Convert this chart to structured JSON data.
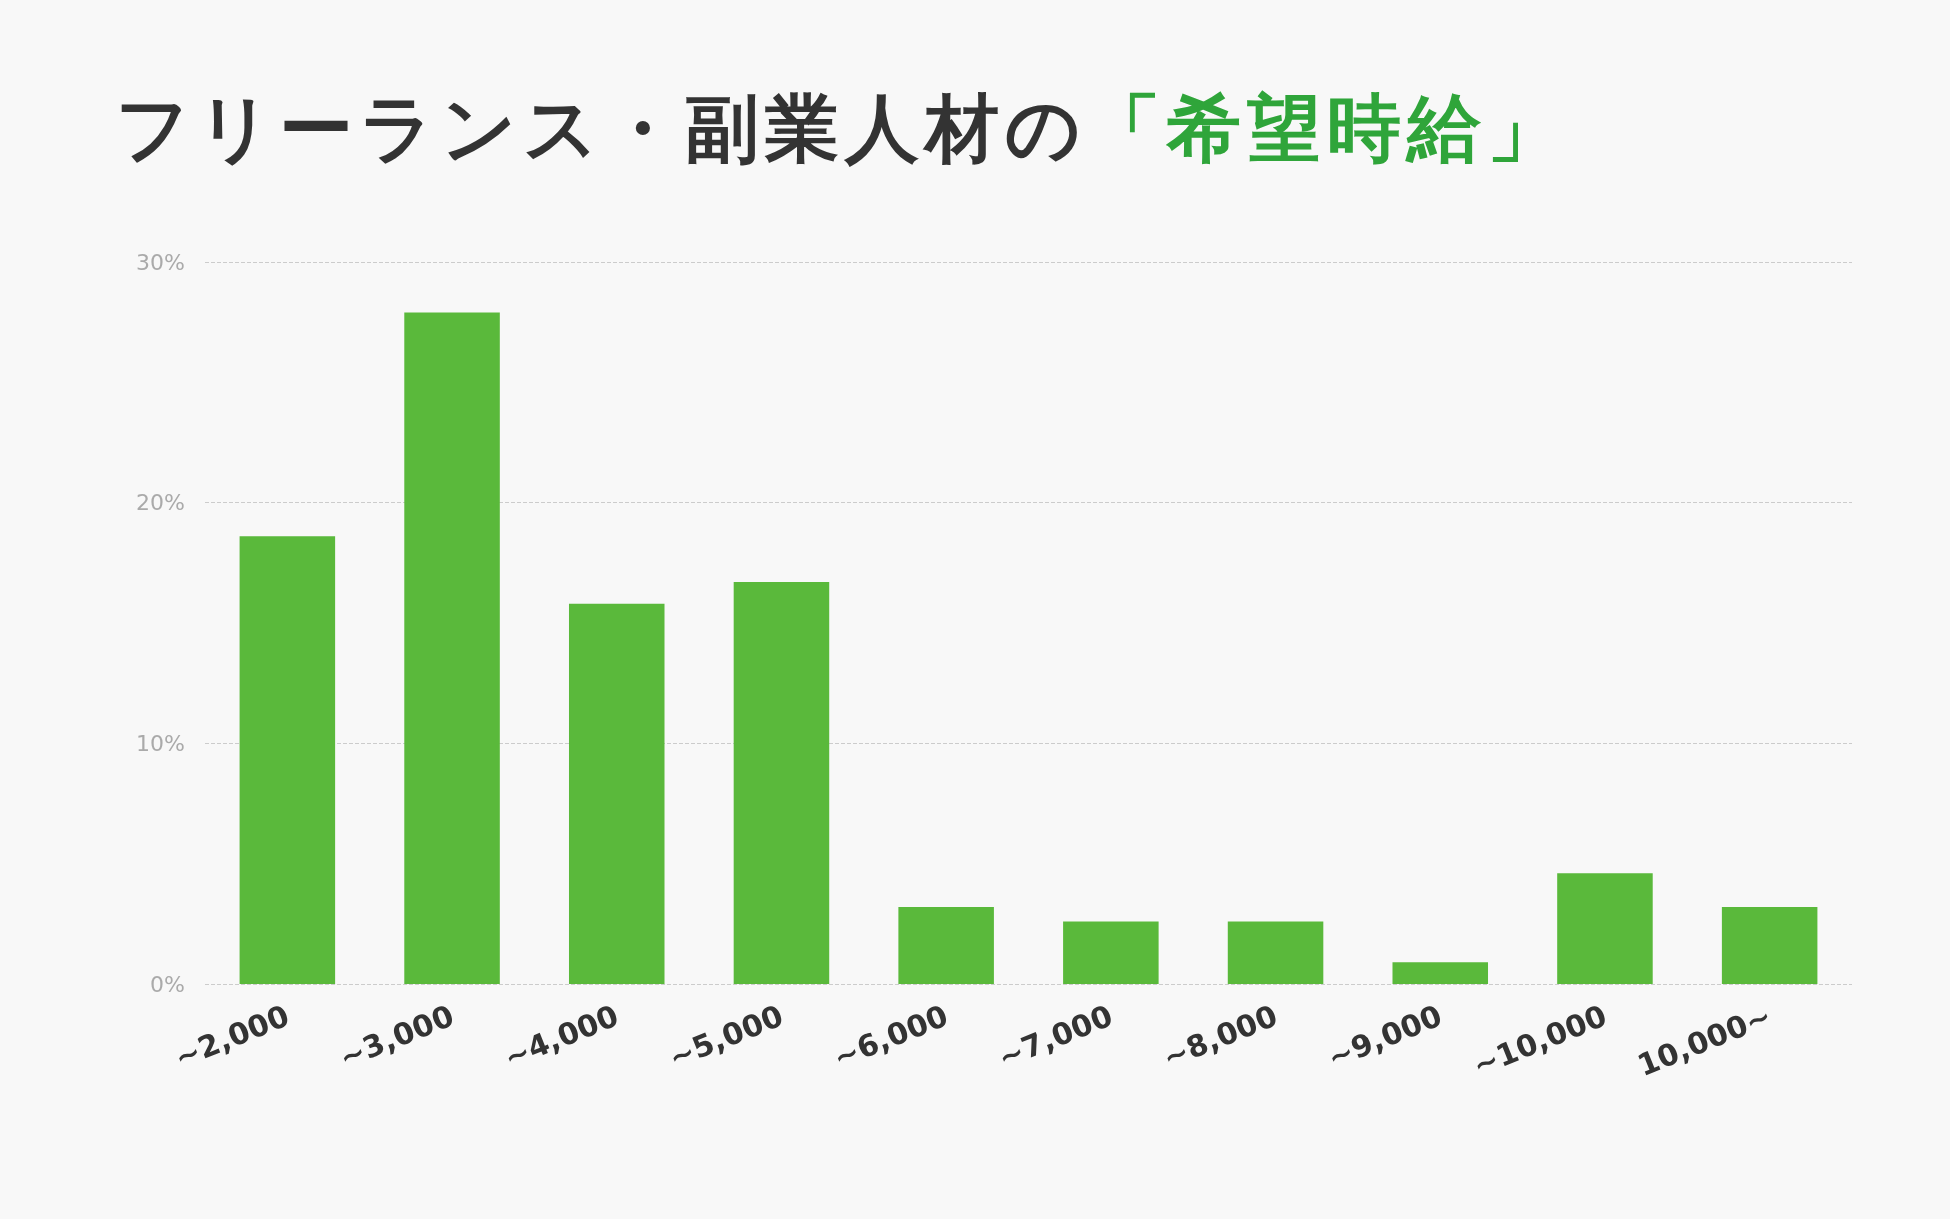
{
  "chart_data": {
    "type": "bar",
    "title": "フリーランス・副業人材の「希望時給」",
    "categories": [
      "~2,000",
      "~3,000",
      "~4,000",
      "~5,000",
      "~6,000",
      "~7,000",
      "~8,000",
      "~9,000",
      "~10,000",
      "10,000~"
    ],
    "values": [
      18.6,
      27.9,
      15.8,
      16.7,
      3.2,
      2.6,
      2.6,
      0.9,
      4.6,
      3.2
    ],
    "color": "#5ab93b",
    "ylim": [
      0,
      30
    ],
    "yticks": [
      {
        "value": 0,
        "label": "0%"
      },
      {
        "value": 10,
        "label": "10%"
      },
      {
        "value": 20,
        "label": "20%"
      },
      {
        "value": 30,
        "label": "30%"
      }
    ],
    "grid": "y"
  }
}
